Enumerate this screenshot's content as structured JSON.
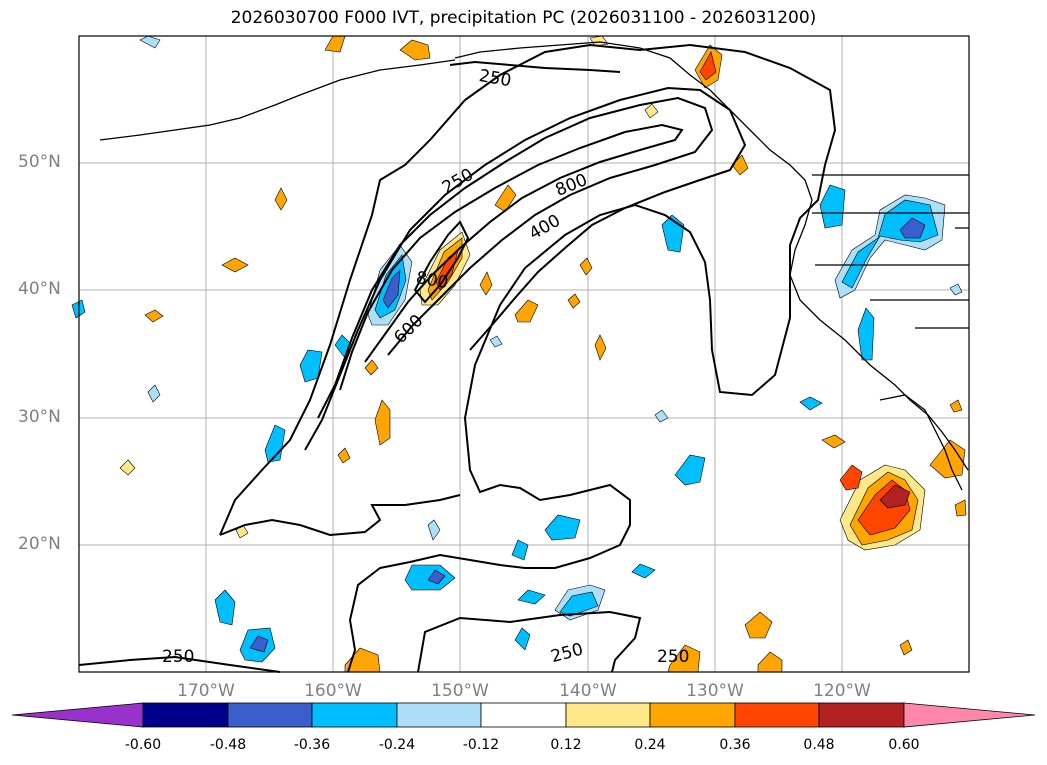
{
  "title": "2026030700 F000 IVT, precipitation PC (2026031100 - 2026031200)",
  "map": {
    "lat_labels": [
      "50°N",
      "40°N",
      "30°N",
      "20°N"
    ],
    "lon_labels": [
      "170°W",
      "160°W",
      "150°W",
      "140°W",
      "130°W",
      "120°W"
    ],
    "contour_labels": [
      {
        "text": "250"
      },
      {
        "text": "250"
      },
      {
        "text": "800"
      },
      {
        "text": "400"
      },
      {
        "text": "800"
      },
      {
        "text": "600"
      },
      {
        "text": "250"
      },
      {
        "text": "250"
      },
      {
        "text": "250"
      }
    ]
  },
  "colorbar": {
    "ticks": [
      "-0.60",
      "-0.48",
      "-0.36",
      "-0.24",
      "-0.12",
      "0.12",
      "0.24",
      "0.36",
      "0.48",
      "0.60"
    ],
    "colors": [
      "#9932CC",
      "#00008B",
      "#3A5FCD",
      "#00BFFF",
      "#ADE0F8",
      "#FFFFFF",
      "#FFE888",
      "#FFA500",
      "#FF4500",
      "#B22222",
      "#FF88AA"
    ]
  }
}
